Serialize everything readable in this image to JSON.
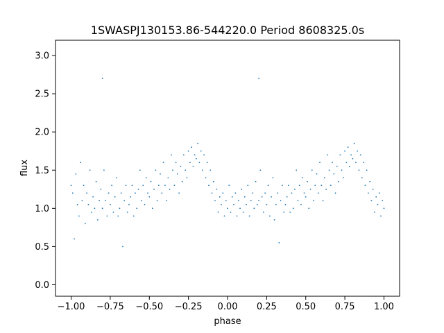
{
  "chart_data": {
    "type": "scatter",
    "title": "1SWASPJ130153.86-544220.0 Period 8608325.0s",
    "xlabel": "phase",
    "ylabel": "flux",
    "xlim": [
      -1.1,
      1.1
    ],
    "ylim": [
      -0.15,
      3.2
    ],
    "xticks": [
      -1.0,
      -0.75,
      -0.5,
      -0.25,
      0.0,
      0.25,
      0.5,
      0.75,
      1.0
    ],
    "xtick_labels": [
      "−1.00",
      "−0.75",
      "−0.50",
      "−0.25",
      "0.00",
      "0.25",
      "0.50",
      "0.75",
      "1.00"
    ],
    "yticks": [
      0.0,
      0.5,
      1.0,
      1.5,
      2.0,
      2.5,
      3.0
    ],
    "ytick_labels": [
      "0.0",
      "0.5",
      "1.0",
      "1.5",
      "2.0",
      "2.5",
      "3.0"
    ],
    "grid": false,
    "marker_color": "#1f77b4",
    "series": [
      {
        "points": [
          [
            -1.0,
            1.3
          ],
          [
            -0.99,
            1.2
          ],
          [
            -0.98,
            0.6
          ],
          [
            -0.97,
            1.45
          ],
          [
            -0.96,
            1.05
          ],
          [
            -0.95,
            0.9
          ],
          [
            -0.94,
            1.6
          ],
          [
            -0.93,
            1.1
          ],
          [
            -0.92,
            1.3
          ],
          [
            -0.91,
            0.8
          ],
          [
            -0.9,
            1.2
          ],
          [
            -0.89,
            1.05
          ],
          [
            -0.88,
            1.5
          ],
          [
            -0.87,
            0.95
          ],
          [
            -0.86,
            1.15
          ],
          [
            -0.85,
            1.0
          ],
          [
            -0.84,
            1.35
          ],
          [
            -0.83,
            0.85
          ],
          [
            -0.82,
            1.1
          ],
          [
            -0.81,
            1.25
          ],
          [
            -0.8,
            2.7
          ],
          [
            -0.8,
            1.0
          ],
          [
            -0.79,
            1.5
          ],
          [
            -0.78,
            1.1
          ],
          [
            -0.77,
            0.9
          ],
          [
            -0.76,
            1.2
          ],
          [
            -0.75,
            1.05
          ],
          [
            -0.74,
            1.3
          ],
          [
            -0.73,
            0.95
          ],
          [
            -0.72,
            1.15
          ],
          [
            -0.71,
            1.4
          ],
          [
            -0.7,
            0.9
          ],
          [
            -0.69,
            1.0
          ],
          [
            -0.68,
            1.2
          ],
          [
            -0.67,
            0.5
          ],
          [
            -0.66,
            1.1
          ],
          [
            -0.65,
            1.3
          ],
          [
            -0.64,
            0.95
          ],
          [
            -0.63,
            1.05
          ],
          [
            -0.62,
            1.15
          ],
          [
            -0.61,
            1.3
          ],
          [
            -0.6,
            0.9
          ],
          [
            -0.59,
            1.2
          ],
          [
            -0.58,
            1.0
          ],
          [
            -0.57,
            1.25
          ],
          [
            -0.56,
            1.5
          ],
          [
            -0.55,
            1.1
          ],
          [
            -0.54,
            1.3
          ],
          [
            -0.53,
            1.05
          ],
          [
            -0.52,
            1.4
          ],
          [
            -0.51,
            1.2
          ],
          [
            -0.5,
            1.15
          ],
          [
            -0.49,
            1.35
          ],
          [
            -0.48,
            1.0
          ],
          [
            -0.47,
            1.25
          ],
          [
            -0.46,
            1.5
          ],
          [
            -0.45,
            1.1
          ],
          [
            -0.44,
            1.3
          ],
          [
            -0.43,
            1.45
          ],
          [
            -0.42,
            1.2
          ],
          [
            -0.41,
            1.6
          ],
          [
            -0.4,
            1.3
          ],
          [
            -0.39,
            1.1
          ],
          [
            -0.38,
            1.4
          ],
          [
            -0.37,
            1.25
          ],
          [
            -0.36,
            1.7
          ],
          [
            -0.35,
            1.5
          ],
          [
            -0.34,
            1.3
          ],
          [
            -0.33,
            1.6
          ],
          [
            -0.32,
            1.45
          ],
          [
            -0.31,
            1.2
          ],
          [
            -0.3,
            1.55
          ],
          [
            -0.29,
            1.35
          ],
          [
            -0.28,
            1.7
          ],
          [
            -0.27,
            1.5
          ],
          [
            -0.26,
            1.4
          ],
          [
            -0.25,
            1.75
          ],
          [
            -0.24,
            1.6
          ],
          [
            -0.23,
            1.8
          ],
          [
            -0.22,
            1.55
          ],
          [
            -0.21,
            1.7
          ],
          [
            -0.2,
            1.65
          ],
          [
            -0.19,
            1.85
          ],
          [
            -0.18,
            1.6
          ],
          [
            -0.17,
            1.75
          ],
          [
            -0.16,
            1.5
          ],
          [
            -0.15,
            1.7
          ],
          [
            -0.14,
            1.4
          ],
          [
            -0.13,
            1.6
          ],
          [
            -0.12,
            1.3
          ],
          [
            -0.11,
            1.5
          ],
          [
            -0.1,
            1.2
          ],
          [
            -0.09,
            1.35
          ],
          [
            -0.08,
            1.1
          ],
          [
            -0.07,
            1.25
          ],
          [
            -0.06,
            0.95
          ],
          [
            -0.05,
            1.15
          ],
          [
            -0.04,
            1.05
          ],
          [
            -0.03,
            1.2
          ],
          [
            -0.02,
            0.9
          ],
          [
            -0.01,
            1.1
          ],
          [
            0.0,
            1.0
          ],
          [
            0.01,
            1.3
          ],
          [
            0.02,
            0.95
          ],
          [
            0.03,
            1.15
          ],
          [
            0.04,
            1.05
          ],
          [
            0.05,
            1.2
          ],
          [
            0.06,
            0.9
          ],
          [
            0.07,
            1.1
          ],
          [
            0.08,
            1.0
          ],
          [
            0.09,
            1.25
          ],
          [
            0.1,
            0.95
          ],
          [
            0.11,
            1.15
          ],
          [
            0.12,
            1.05
          ],
          [
            0.13,
            1.3
          ],
          [
            0.14,
            0.9
          ],
          [
            0.15,
            1.1
          ],
          [
            0.16,
            1.2
          ],
          [
            0.17,
            1.0
          ],
          [
            0.18,
            1.35
          ],
          [
            0.19,
            1.05
          ],
          [
            0.2,
            2.7
          ],
          [
            0.2,
            1.1
          ],
          [
            0.21,
            1.5
          ],
          [
            0.22,
            1.15
          ],
          [
            0.23,
            0.95
          ],
          [
            0.24,
            1.2
          ],
          [
            0.25,
            1.05
          ],
          [
            0.26,
            1.3
          ],
          [
            0.27,
            0.9
          ],
          [
            0.28,
            1.15
          ],
          [
            0.29,
            1.4
          ],
          [
            0.3,
            0.85
          ],
          [
            0.31,
            1.05
          ],
          [
            0.32,
            1.2
          ],
          [
            0.33,
            0.55
          ],
          [
            0.34,
            1.1
          ],
          [
            0.35,
            1.3
          ],
          [
            0.36,
            0.95
          ],
          [
            0.37,
            1.05
          ],
          [
            0.38,
            1.15
          ],
          [
            0.39,
            1.3
          ],
          [
            0.4,
            0.95
          ],
          [
            0.41,
            1.2
          ],
          [
            0.42,
            1.0
          ],
          [
            0.43,
            1.25
          ],
          [
            0.44,
            1.5
          ],
          [
            0.45,
            1.1
          ],
          [
            0.46,
            1.3
          ],
          [
            0.47,
            1.05
          ],
          [
            0.48,
            1.4
          ],
          [
            0.49,
            1.2
          ],
          [
            0.5,
            1.15
          ],
          [
            0.51,
            1.35
          ],
          [
            0.52,
            1.0
          ],
          [
            0.53,
            1.25
          ],
          [
            0.54,
            1.5
          ],
          [
            0.55,
            1.1
          ],
          [
            0.56,
            1.3
          ],
          [
            0.57,
            1.45
          ],
          [
            0.58,
            1.2
          ],
          [
            0.59,
            1.6
          ],
          [
            0.6,
            1.3
          ],
          [
            0.61,
            1.1
          ],
          [
            0.62,
            1.4
          ],
          [
            0.63,
            1.25
          ],
          [
            0.64,
            1.7
          ],
          [
            0.65,
            1.5
          ],
          [
            0.66,
            1.3
          ],
          [
            0.67,
            1.6
          ],
          [
            0.68,
            1.45
          ],
          [
            0.69,
            1.2
          ],
          [
            0.7,
            1.55
          ],
          [
            0.71,
            1.35
          ],
          [
            0.72,
            1.7
          ],
          [
            0.73,
            1.5
          ],
          [
            0.74,
            1.4
          ],
          [
            0.75,
            1.75
          ],
          [
            0.76,
            1.6
          ],
          [
            0.77,
            1.8
          ],
          [
            0.78,
            1.55
          ],
          [
            0.79,
            1.7
          ],
          [
            0.8,
            1.65
          ],
          [
            0.81,
            1.85
          ],
          [
            0.82,
            1.6
          ],
          [
            0.83,
            1.75
          ],
          [
            0.84,
            1.5
          ],
          [
            0.85,
            1.7
          ],
          [
            0.86,
            1.4
          ],
          [
            0.87,
            1.6
          ],
          [
            0.88,
            1.3
          ],
          [
            0.89,
            1.5
          ],
          [
            0.9,
            1.2
          ],
          [
            0.91,
            1.35
          ],
          [
            0.92,
            1.1
          ],
          [
            0.93,
            1.25
          ],
          [
            0.94,
            0.95
          ],
          [
            0.95,
            1.15
          ],
          [
            0.96,
            1.05
          ],
          [
            0.97,
            1.2
          ],
          [
            0.98,
            0.9
          ],
          [
            0.99,
            1.1
          ],
          [
            1.0,
            1.0
          ]
        ]
      }
    ]
  }
}
